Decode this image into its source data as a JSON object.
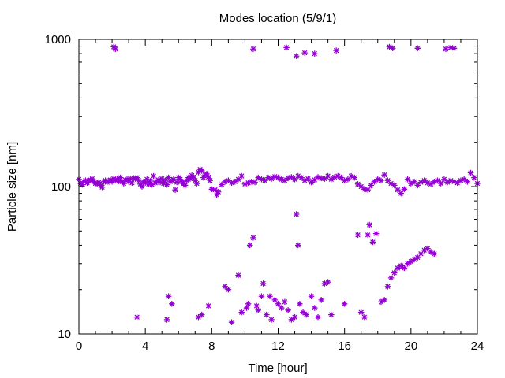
{
  "chart_data": {
    "type": "scatter",
    "title": "Modes location (5/9/1)",
    "xlabel": "Time [hour]",
    "ylabel": "Particle size [nm]",
    "xlim": [
      0,
      24
    ],
    "ylim": [
      10,
      1000
    ],
    "yscale": "log",
    "grid": false,
    "legend": "none",
    "marker_color": "#9400d3",
    "x_ticks": [
      0,
      4,
      8,
      12,
      16,
      20,
      24
    ],
    "x_tick_labels": [
      "0",
      "4",
      "8",
      "12",
      "16",
      "20",
      "24"
    ],
    "y_ticks": [
      10,
      100,
      1000
    ],
    "y_tick_labels": [
      "10",
      "100",
      "1000"
    ],
    "series": [
      {
        "points": [
          [
            0.0,
            112
          ],
          [
            0.1,
            105
          ],
          [
            0.2,
            103
          ],
          [
            0.3,
            108
          ],
          [
            0.4,
            110
          ],
          [
            0.5,
            106
          ],
          [
            0.6,
            109
          ],
          [
            0.7,
            111
          ],
          [
            0.8,
            113
          ],
          [
            0.9,
            108
          ],
          [
            1.0,
            105
          ],
          [
            1.1,
            104
          ],
          [
            1.2,
            107
          ],
          [
            1.3,
            102
          ],
          [
            1.4,
            99
          ],
          [
            1.5,
            108
          ],
          [
            1.6,
            110
          ],
          [
            1.7,
            107
          ],
          [
            1.8,
            109
          ],
          [
            1.9,
            111
          ],
          [
            2.0,
            108
          ],
          [
            2.1,
            113
          ],
          [
            2.2,
            110
          ],
          [
            2.3,
            112
          ],
          [
            2.4,
            109
          ],
          [
            2.5,
            115
          ],
          [
            2.6,
            108
          ],
          [
            2.7,
            105
          ],
          [
            2.8,
            111
          ],
          [
            2.9,
            112
          ],
          [
            3.0,
            108
          ],
          [
            3.1,
            113
          ],
          [
            3.2,
            106
          ],
          [
            3.3,
            114
          ],
          [
            3.4,
            113
          ],
          [
            3.5,
            115
          ],
          [
            3.6,
            110
          ],
          [
            3.7,
            104
          ],
          [
            3.8,
            100
          ],
          [
            3.9,
            108
          ],
          [
            4.0,
            106
          ],
          [
            4.1,
            112
          ],
          [
            4.2,
            104
          ],
          [
            4.3,
            109
          ],
          [
            4.4,
            103
          ],
          [
            4.5,
            118
          ],
          [
            4.6,
            106
          ],
          [
            4.7,
            109
          ],
          [
            4.8,
            111
          ],
          [
            4.9,
            107
          ],
          [
            5.0,
            113
          ],
          [
            5.1,
            105
          ],
          [
            5.2,
            110
          ],
          [
            5.3,
            103
          ],
          [
            5.4,
            115
          ],
          [
            5.5,
            108
          ],
          [
            5.6,
            110
          ],
          [
            5.7,
            112
          ],
          [
            5.8,
            95
          ],
          [
            5.9,
            107
          ],
          [
            6.0,
            115
          ],
          [
            6.1,
            112
          ],
          [
            6.2,
            108
          ],
          [
            6.3,
            105
          ],
          [
            6.4,
            102
          ],
          [
            6.5,
            110
          ],
          [
            6.6,
            115
          ],
          [
            6.7,
            113
          ],
          [
            6.8,
            119
          ],
          [
            6.9,
            116
          ],
          [
            7.0,
            110
          ],
          [
            7.1,
            105
          ],
          [
            7.2,
            125
          ],
          [
            7.3,
            131
          ],
          [
            7.4,
            128
          ],
          [
            7.5,
            115
          ],
          [
            7.6,
            120
          ],
          [
            7.7,
            122
          ],
          [
            7.8,
            116
          ],
          [
            7.9,
            110
          ],
          [
            8.0,
            96
          ],
          [
            8.2,
            95
          ],
          [
            8.3,
            88
          ],
          [
            8.4,
            92
          ],
          [
            8.6,
            103
          ],
          [
            8.8,
            108
          ],
          [
            9.0,
            110
          ],
          [
            9.2,
            106
          ],
          [
            9.4,
            108
          ],
          [
            9.6,
            112
          ],
          [
            9.8,
            118
          ],
          [
            10.0,
            104
          ],
          [
            10.2,
            106
          ],
          [
            10.4,
            108
          ],
          [
            10.6,
            107
          ],
          [
            10.8,
            115
          ],
          [
            11.0,
            112
          ],
          [
            11.2,
            110
          ],
          [
            11.4,
            115
          ],
          [
            11.6,
            113
          ],
          [
            11.8,
            117
          ],
          [
            12.0,
            115
          ],
          [
            12.2,
            112
          ],
          [
            12.4,
            110
          ],
          [
            12.6,
            114
          ],
          [
            12.8,
            116
          ],
          [
            13.0,
            112
          ],
          [
            13.2,
            118
          ],
          [
            13.4,
            115
          ],
          [
            13.6,
            110
          ],
          [
            13.8,
            113
          ],
          [
            14.0,
            107
          ],
          [
            14.2,
            111
          ],
          [
            14.4,
            116
          ],
          [
            14.6,
            114
          ],
          [
            14.8,
            113
          ],
          [
            15.0,
            118
          ],
          [
            15.2,
            112
          ],
          [
            15.4,
            116
          ],
          [
            15.6,
            118
          ],
          [
            15.8,
            115
          ],
          [
            16.0,
            110
          ],
          [
            16.2,
            112
          ],
          [
            16.4,
            118
          ],
          [
            16.6,
            115
          ],
          [
            16.8,
            104
          ],
          [
            17.0,
            100
          ],
          [
            17.2,
            96
          ],
          [
            17.4,
            95
          ],
          [
            17.6,
            102
          ],
          [
            17.8,
            108
          ],
          [
            18.0,
            112
          ],
          [
            18.2,
            110
          ],
          [
            18.4,
            120
          ],
          [
            18.6,
            110
          ],
          [
            18.8,
            105
          ],
          [
            19.0,
            102
          ],
          [
            19.2,
            95
          ],
          [
            19.4,
            90
          ],
          [
            19.6,
            96
          ],
          [
            19.8,
            112
          ],
          [
            20.0,
            105
          ],
          [
            20.2,
            108
          ],
          [
            20.4,
            102
          ],
          [
            20.6,
            107
          ],
          [
            20.8,
            110
          ],
          [
            21.0,
            106
          ],
          [
            21.2,
            104
          ],
          [
            21.4,
            108
          ],
          [
            21.6,
            110
          ],
          [
            21.8,
            105
          ],
          [
            22.0,
            112
          ],
          [
            22.2,
            107
          ],
          [
            22.4,
            110
          ],
          [
            22.6,
            108
          ],
          [
            22.8,
            106
          ],
          [
            23.0,
            110
          ],
          [
            23.2,
            112
          ],
          [
            23.4,
            108
          ],
          [
            23.6,
            124
          ],
          [
            23.8,
            115
          ],
          [
            24.0,
            105
          ],
          [
            2.1,
            890
          ],
          [
            2.2,
            860
          ],
          [
            10.5,
            860
          ],
          [
            12.5,
            880
          ],
          [
            13.1,
            770
          ],
          [
            13.6,
            810
          ],
          [
            14.2,
            800
          ],
          [
            15.5,
            840
          ],
          [
            18.7,
            890
          ],
          [
            18.9,
            870
          ],
          [
            20.4,
            870
          ],
          [
            22.1,
            860
          ],
          [
            22.4,
            880
          ],
          [
            22.6,
            870
          ],
          [
            3.5,
            13
          ],
          [
            5.3,
            12.5
          ],
          [
            5.4,
            18
          ],
          [
            5.6,
            16
          ],
          [
            7.2,
            13
          ],
          [
            7.4,
            13.5
          ],
          [
            7.8,
            15.5
          ],
          [
            8.8,
            21
          ],
          [
            9.0,
            20
          ],
          [
            9.2,
            12
          ],
          [
            9.6,
            25
          ],
          [
            9.8,
            14
          ],
          [
            10.1,
            15
          ],
          [
            10.2,
            16
          ],
          [
            10.3,
            40
          ],
          [
            10.5,
            45
          ],
          [
            10.7,
            15.5
          ],
          [
            10.8,
            14.5
          ],
          [
            11.0,
            18
          ],
          [
            11.1,
            22
          ],
          [
            11.3,
            13.5
          ],
          [
            11.5,
            18
          ],
          [
            11.6,
            12.5
          ],
          [
            11.8,
            17
          ],
          [
            12.0,
            16
          ],
          [
            12.2,
            15
          ],
          [
            12.4,
            16.5
          ],
          [
            12.6,
            14.5
          ],
          [
            12.8,
            12.5
          ],
          [
            13.0,
            13
          ],
          [
            13.1,
            65
          ],
          [
            13.2,
            40
          ],
          [
            13.3,
            16
          ],
          [
            13.5,
            14
          ],
          [
            13.7,
            13.5
          ],
          [
            14.0,
            18
          ],
          [
            14.2,
            15
          ],
          [
            14.4,
            13
          ],
          [
            14.6,
            17
          ],
          [
            14.8,
            22
          ],
          [
            15.0,
            22.5
          ],
          [
            15.2,
            13.5
          ],
          [
            16.0,
            16
          ],
          [
            16.8,
            47
          ],
          [
            17.0,
            14
          ],
          [
            17.2,
            13
          ],
          [
            17.4,
            47
          ],
          [
            17.5,
            55
          ],
          [
            17.7,
            42
          ],
          [
            17.9,
            48
          ],
          [
            18.2,
            16.5
          ],
          [
            18.4,
            17
          ],
          [
            18.6,
            21
          ],
          [
            18.8,
            24
          ],
          [
            19.0,
            26
          ],
          [
            19.2,
            28
          ],
          [
            19.4,
            29
          ],
          [
            19.6,
            28
          ],
          [
            19.8,
            30
          ],
          [
            20.0,
            31
          ],
          [
            20.2,
            32
          ],
          [
            20.4,
            33
          ],
          [
            20.6,
            35
          ],
          [
            20.8,
            37
          ],
          [
            21.0,
            38
          ],
          [
            21.2,
            36
          ],
          [
            21.4,
            35
          ]
        ]
      }
    ]
  }
}
